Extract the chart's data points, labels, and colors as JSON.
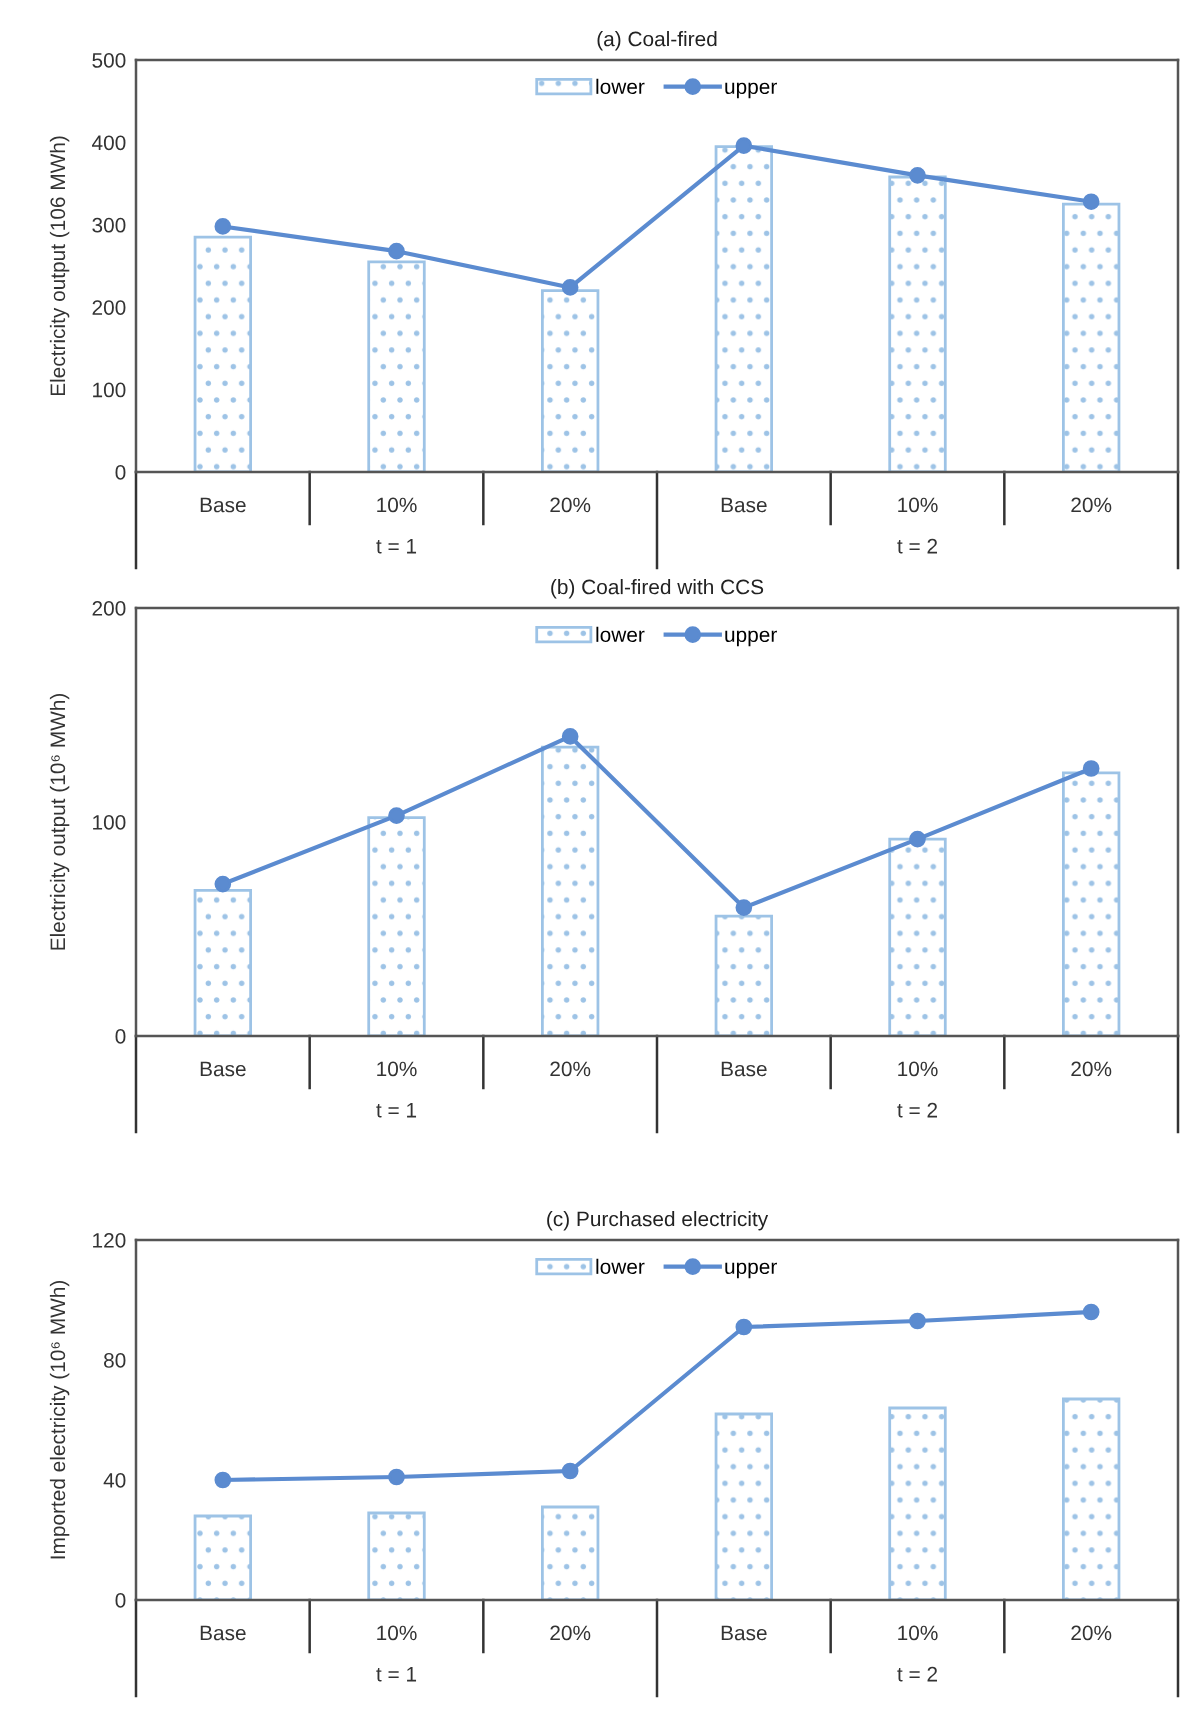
{
  "chart_data": [
    {
      "type": "bar",
      "title": "(a) Coal-fired",
      "ylabel": "Electricity output (106 MWh)",
      "categories": [
        "Base",
        "10%",
        "20%",
        "Base",
        "10%",
        "20%"
      ],
      "annotations": [
        "t = 1",
        "t = 2"
      ],
      "ylim": [
        0,
        500
      ],
      "yticks": [
        0,
        100,
        200,
        300,
        400,
        500
      ],
      "grid": false,
      "legend": "top",
      "series": [
        {
          "name": "lower",
          "color": "#9dc3e6",
          "values": [
            285,
            255,
            220,
            395,
            358,
            325
          ]
        },
        {
          "name": "upper",
          "type": "line",
          "color": "#5b8bd0",
          "marker": "circle",
          "values": [
            298,
            268,
            224,
            396,
            360,
            328
          ]
        }
      ]
    },
    {
      "type": "bar",
      "title": "(b) Coal-fired with CCS",
      "ylabel": "Electricity output (10⁶ MWh)",
      "categories": [
        "Base",
        "10%",
        "20%",
        "Base",
        "10%",
        "20%"
      ],
      "annotations": [
        "t = 1",
        "t = 2"
      ],
      "ylim": [
        0,
        200
      ],
      "yticks": [
        0,
        100,
        200
      ],
      "grid": false,
      "legend": "top",
      "series": [
        {
          "name": "lower",
          "color": "#9dc3e6",
          "values": [
            68,
            102,
            135,
            56,
            92,
            123
          ]
        },
        {
          "name": "upper",
          "type": "line",
          "color": "#5b8bd0",
          "marker": "circle",
          "values": [
            71,
            103,
            140,
            60,
            92,
            125
          ]
        }
      ]
    },
    {
      "type": "bar",
      "title": "(c) Purchased electricity",
      "ylabel": "Imported electricity (10⁶ MWh)",
      "categories": [
        "Base",
        "10%",
        "20%",
        "Base",
        "10%",
        "20%"
      ],
      "annotations": [
        "t = 1",
        "t = 2"
      ],
      "ylim": [
        0,
        120
      ],
      "yticks": [
        0,
        40,
        80,
        120
      ],
      "grid": false,
      "legend": "top",
      "series": [
        {
          "name": "lower",
          "color": "#9dc3e6",
          "values": [
            28,
            29,
            31,
            62,
            64,
            67
          ]
        },
        {
          "name": "upper",
          "type": "line",
          "color": "#5b8bd0",
          "marker": "circle",
          "values": [
            40,
            41,
            43,
            91,
            93,
            96
          ]
        }
      ]
    }
  ]
}
